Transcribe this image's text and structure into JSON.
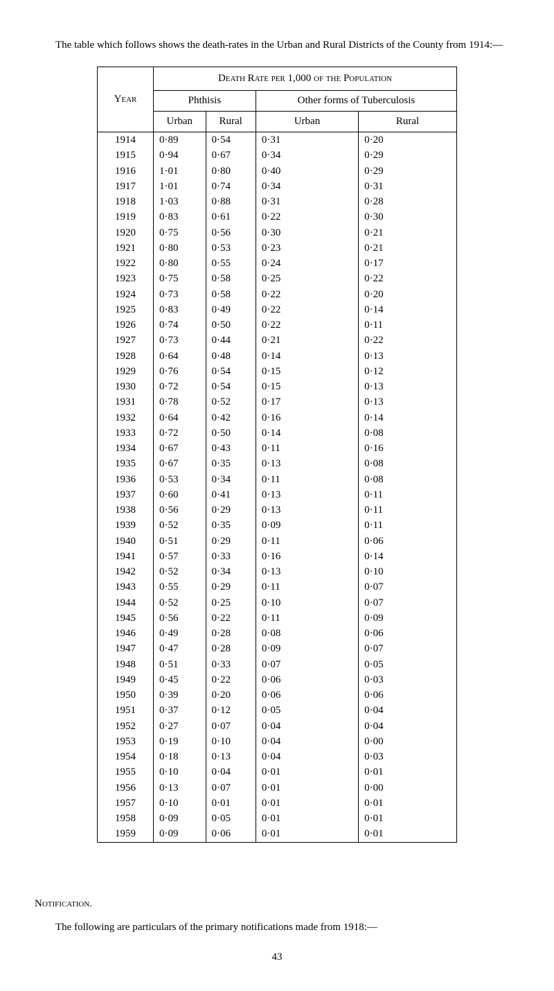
{
  "intro": "The table which follows shows the death-rates in the Urban and Rural Districts of the County from 1914:—",
  "headers": {
    "main": "Death Rate per 1,000 of the Population",
    "year": "Year",
    "phthisis": "Phthisis",
    "other": "Other forms of Tuberculosis",
    "urban": "Urban",
    "rural": "Rural"
  },
  "rows": [
    {
      "year": "1914",
      "pu": "0·89",
      "pr": "0·54",
      "ou": "0·31",
      "or": "0·20"
    },
    {
      "year": "1915",
      "pu": "0·94",
      "pr": "0·67",
      "ou": "0·34",
      "or": "0·29"
    },
    {
      "year": "1916",
      "pu": "1·01",
      "pr": "0·80",
      "ou": "0·40",
      "or": "0·29"
    },
    {
      "year": "1917",
      "pu": "1·01",
      "pr": "0·74",
      "ou": "0·34",
      "or": "0·31"
    },
    {
      "year": "1918",
      "pu": "1·03",
      "pr": "0·88",
      "ou": "0·31",
      "or": "0·28"
    },
    {
      "year": "1919",
      "pu": "0·83",
      "pr": "0·61",
      "ou": "0·22",
      "or": "0·30"
    },
    {
      "year": "1920",
      "pu": "0·75",
      "pr": "0·56",
      "ou": "0·30",
      "or": "0·21"
    },
    {
      "year": "1921",
      "pu": "0·80",
      "pr": "0·53",
      "ou": "0·23",
      "or": "0·21"
    },
    {
      "year": "1922",
      "pu": "0·80",
      "pr": "0·55",
      "ou": "0·24",
      "or": "0·17"
    },
    {
      "year": "1923",
      "pu": "0·75",
      "pr": "0·58",
      "ou": "0·25",
      "or": "0·22"
    },
    {
      "year": "1924",
      "pu": "0·73",
      "pr": "0·58",
      "ou": "0·22",
      "or": "0·20"
    },
    {
      "year": "1925",
      "pu": "0·83",
      "pr": "0·49",
      "ou": "0·22",
      "or": "0·14"
    },
    {
      "year": "1926",
      "pu": "0·74",
      "pr": "0·50",
      "ou": "0·22",
      "or": "0·11"
    },
    {
      "year": "1927",
      "pu": "0·73",
      "pr": "0·44",
      "ou": "0·21",
      "or": "0·22"
    },
    {
      "year": "1928",
      "pu": "0·64",
      "pr": "0·48",
      "ou": "0·14",
      "or": "0·13"
    },
    {
      "year": "1929",
      "pu": "0·76",
      "pr": "0·54",
      "ou": "0·15",
      "or": "0·12"
    },
    {
      "year": "1930",
      "pu": "0·72",
      "pr": "0·54",
      "ou": "0·15",
      "or": "0·13"
    },
    {
      "year": "1931",
      "pu": "0·78",
      "pr": "0·52",
      "ou": "0·17",
      "or": "0·13"
    },
    {
      "year": "1932",
      "pu": "0·64",
      "pr": "0·42",
      "ou": "0·16",
      "or": "0·14"
    },
    {
      "year": "1933",
      "pu": "0·72",
      "pr": "0·50",
      "ou": "0·14",
      "or": "0·08"
    },
    {
      "year": "1934",
      "pu": "0·67",
      "pr": "0·43",
      "ou": "0·11",
      "or": "0·16"
    },
    {
      "year": "1935",
      "pu": "0·67",
      "pr": "0·35",
      "ou": "0·13",
      "or": "0·08"
    },
    {
      "year": "1936",
      "pu": "0·53",
      "pr": "0·34",
      "ou": "0·11",
      "or": "0·08"
    },
    {
      "year": "1937",
      "pu": "0·60",
      "pr": "0·41",
      "ou": "0·13",
      "or": "0·11"
    },
    {
      "year": "1938",
      "pu": "0·56",
      "pr": "0·29",
      "ou": "0·13",
      "or": "0·11"
    },
    {
      "year": "1939",
      "pu": "0·52",
      "pr": "0·35",
      "ou": "0·09",
      "or": "0·11"
    },
    {
      "year": "1940",
      "pu": "0·51",
      "pr": "0·29",
      "ou": "0·11",
      "or": "0·06"
    },
    {
      "year": "1941",
      "pu": "0·57",
      "pr": "0·33",
      "ou": "0·16",
      "or": "0·14"
    },
    {
      "year": "1942",
      "pu": "0·52",
      "pr": "0·34",
      "ou": "0·13",
      "or": "0·10"
    },
    {
      "year": "1943",
      "pu": "0·55",
      "pr": "0·29",
      "ou": "0·11",
      "or": "0·07"
    },
    {
      "year": "1944",
      "pu": "0·52",
      "pr": "0·25",
      "ou": "0·10",
      "or": "0·07"
    },
    {
      "year": "1945",
      "pu": "0·56",
      "pr": "0·22",
      "ou": "0·11",
      "or": "0·09"
    },
    {
      "year": "1946",
      "pu": "0·49",
      "pr": "0·28",
      "ou": "0·08",
      "or": "0·06"
    },
    {
      "year": "1947",
      "pu": "0·47",
      "pr": "0·28",
      "ou": "0·09",
      "or": "0·07"
    },
    {
      "year": "1948",
      "pu": "0·51",
      "pr": "0·33",
      "ou": "0·07",
      "or": "0·05"
    },
    {
      "year": "1949",
      "pu": "0·45",
      "pr": "0·22",
      "ou": "0·06",
      "or": "0·03"
    },
    {
      "year": "1950",
      "pu": "0·39",
      "pr": "0·20",
      "ou": "0·06",
      "or": "0·06"
    },
    {
      "year": "1951",
      "pu": "0·37",
      "pr": "0·12",
      "ou": "0·05",
      "or": "0·04"
    },
    {
      "year": "1952",
      "pu": "0·27",
      "pr": "0·07",
      "ou": "0·04",
      "or": "0·04"
    },
    {
      "year": "1953",
      "pu": "0·19",
      "pr": "0·10",
      "ou": "0·04",
      "or": "0·00"
    },
    {
      "year": "1954",
      "pu": "0·18",
      "pr": "0·13",
      "ou": "0·04",
      "or": "0·03"
    },
    {
      "year": "1955",
      "pu": "0·10",
      "pr": "0·04",
      "ou": "0·01",
      "or": "0·01"
    },
    {
      "year": "1956",
      "pu": "0·13",
      "pr": "0·07",
      "ou": "0·01",
      "or": "0·00"
    },
    {
      "year": "1957",
      "pu": "0·10",
      "pr": "0·01",
      "ou": "0·01",
      "or": "0·01"
    },
    {
      "year": "1958",
      "pu": "0·09",
      "pr": "0·05",
      "ou": "0·01",
      "or": "0·01"
    },
    {
      "year": "1959",
      "pu": "0·09",
      "pr": "0·06",
      "ou": "0·01",
      "or": "0·01"
    }
  ],
  "notification_heading": "Notification.",
  "closing_text": "The following are particulars of the primary notifications made from 1918:—",
  "page_number": "43"
}
